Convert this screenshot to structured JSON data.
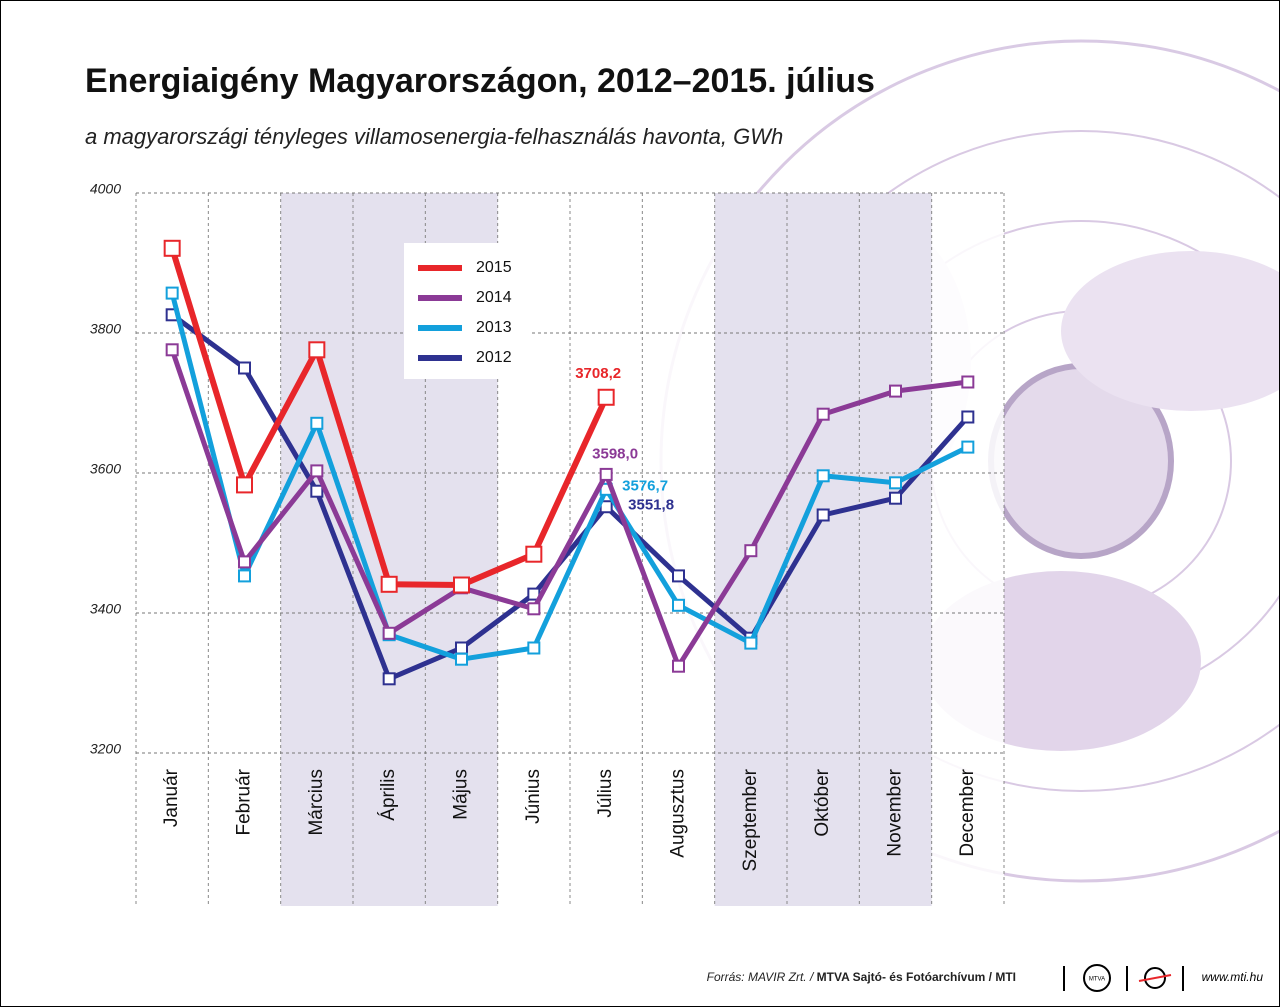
{
  "chart_data": {
    "type": "line",
    "title": "Energiaigény Magyarországon, 2012–2015. július",
    "subtitle": "a magyarországi tényleges villamosenergia-felhasználás havonta, GWh",
    "categories": [
      "Január",
      "Február",
      "Március",
      "Április",
      "Május",
      "Június",
      "Július",
      "Augusztus",
      "Szeptember",
      "Október",
      "November",
      "December"
    ],
    "series": [
      {
        "name": "2015",
        "color": "#e8262a",
        "values": [
          3921,
          3583,
          3776,
          3441,
          3440,
          3484,
          3708.2,
          null,
          null,
          null,
          null,
          null
        ],
        "value_labels": [
          null,
          null,
          null,
          null,
          null,
          null,
          "3708,2",
          null,
          null,
          null,
          null,
          null
        ]
      },
      {
        "name": "2014",
        "color": "#8b3a96",
        "values": [
          3776,
          3473,
          3603,
          3371,
          3436,
          3406,
          3598.0,
          3324,
          3489,
          3684,
          3717,
          3730
        ],
        "value_labels": [
          null,
          null,
          null,
          null,
          null,
          null,
          "3598,0",
          null,
          null,
          null,
          null,
          null
        ]
      },
      {
        "name": "2013",
        "color": "#13a0dc",
        "values": [
          3857,
          3453,
          3671,
          3369,
          3334,
          3350,
          3576.7,
          3411,
          3357,
          3596,
          3586,
          3637
        ],
        "value_labels": [
          null,
          null,
          null,
          null,
          null,
          null,
          "3576,7",
          null,
          null,
          null,
          null,
          null
        ]
      },
      {
        "name": "2012",
        "color": "#2e3190",
        "values": [
          3826,
          3750,
          3574,
          3306,
          3350,
          3427,
          3551.8,
          3453,
          3364,
          3540,
          3564,
          3680
        ],
        "value_labels": [
          null,
          null,
          null,
          null,
          null,
          null,
          "3551,8",
          null,
          null,
          null,
          null,
          null
        ]
      }
    ],
    "ylim": [
      3200,
      4000
    ],
    "yticks": [
      3200,
      3400,
      3600,
      3800,
      4000
    ],
    "grid": true,
    "legend": "top-center"
  },
  "footer": {
    "source": "Forrás: MAVIR Zrt. /",
    "credit": "MTVA Sajtó- és Fotóarchívum / MTI",
    "logo": "MTVA",
    "url": "www.mti.hu"
  }
}
